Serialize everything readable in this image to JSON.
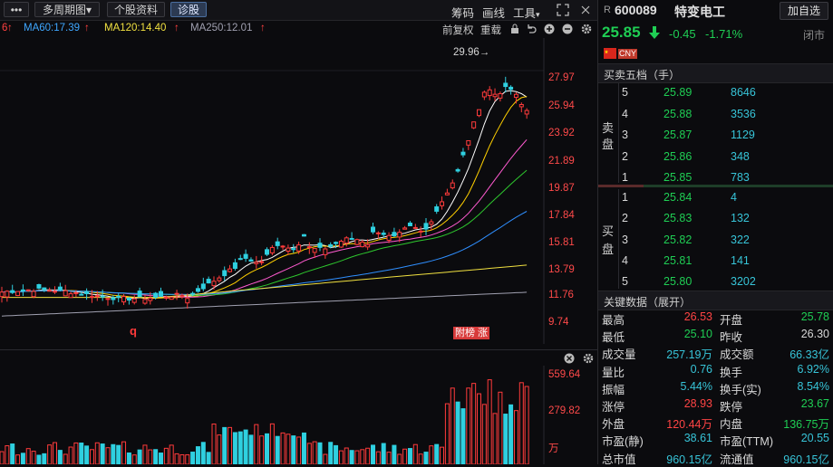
{
  "toolbar": {
    "menu_dots": "•••",
    "multi_period": "多周期图",
    "multi_period_arrow": "▾",
    "stock_info": "个股资料",
    "diagnose": "诊股",
    "chips": "筹码",
    "draw": "画线",
    "tools": "工具",
    "tools_arrow": "▾"
  },
  "ma_bar": {
    "ma_cut": "6",
    "ma60": "MA60:17.39",
    "ma120": "MA120:14.40",
    "ma250": "MA250:12.01",
    "adjust": "前复权",
    "overlay": "重载",
    "ma60_color": "#3fa7ff",
    "ma120_color": "#f0e040",
    "ma250_color": "#a0a0b0"
  },
  "price_axis": [
    "27.97",
    "25.94",
    "23.92",
    "21.89",
    "19.87",
    "17.84",
    "15.81",
    "13.79",
    "11.76",
    "9.74"
  ],
  "peak_label": "29.96→",
  "chart_marks": {
    "q_label": "q",
    "tag_label": "附榜 涨"
  },
  "volume_axis": [
    "559.64",
    "279.82",
    "万"
  ],
  "stock": {
    "prefix": "R",
    "code": "600089",
    "name": "特变电工",
    "watch_button": "加自选",
    "price": "25.85",
    "change": "-0.45",
    "change_pct": "-1.71%",
    "status": "闭市",
    "currency_tag": "CNY"
  },
  "order_book": {
    "title": "买卖五档（手）",
    "sell_label_1": "卖",
    "sell_label_2": "盘",
    "buy_label_1": "买",
    "buy_label_2": "盘",
    "sells": [
      {
        "level": "5",
        "price": "25.89",
        "vol": "8646"
      },
      {
        "level": "4",
        "price": "25.88",
        "vol": "3536"
      },
      {
        "level": "3",
        "price": "25.87",
        "vol": "1129"
      },
      {
        "level": "2",
        "price": "25.86",
        "vol": "348"
      },
      {
        "level": "1",
        "price": "25.85",
        "vol": "783"
      }
    ],
    "buys": [
      {
        "level": "1",
        "price": "25.84",
        "vol": "4"
      },
      {
        "level": "2",
        "price": "25.83",
        "vol": "132"
      },
      {
        "level": "3",
        "price": "25.82",
        "vol": "322"
      },
      {
        "level": "4",
        "price": "25.81",
        "vol": "141"
      },
      {
        "level": "5",
        "price": "25.80",
        "vol": "3202"
      }
    ]
  },
  "key_data": {
    "title": "关键数据（展开）",
    "rows": [
      {
        "l1": "最高",
        "v1": "26.53",
        "c1": "red",
        "l2": "开盘",
        "v2": "25.78",
        "c2": "green"
      },
      {
        "l1": "最低",
        "v1": "25.10",
        "c1": "green",
        "l2": "昨收",
        "v2": "26.30",
        "c2": "white"
      },
      {
        "l1": "成交量",
        "v1": "257.19万",
        "c1": "cyan",
        "l2": "成交额",
        "v2": "66.33亿",
        "c2": "cyan"
      },
      {
        "l1": "量比",
        "v1": "0.76",
        "c1": "cyan",
        "l2": "换手",
        "v2": "6.92%",
        "c2": "cyan"
      },
      {
        "l1": "振幅",
        "v1": "5.44%",
        "c1": "cyan",
        "l2": "换手(实)",
        "v2": "8.54%",
        "c2": "cyan"
      },
      {
        "l1": "涨停",
        "v1": "28.93",
        "c1": "red",
        "l2": "跌停",
        "v2": "23.67",
        "c2": "green"
      },
      {
        "l1": "外盘",
        "v1": "120.44万",
        "c1": "red",
        "l2": "内盘",
        "v2": "136.75万",
        "c2": "green"
      },
      {
        "l1": "市盈(静)",
        "v1": "38.61",
        "c1": "cyan",
        "l2": "市盈(TTM)",
        "v2": "20.55",
        "c2": "cyan"
      },
      {
        "l1": "总市值",
        "v1": "960.15亿",
        "c1": "cyan",
        "l2": "流通值",
        "v2": "960.15亿",
        "c2": "cyan"
      }
    ]
  }
}
